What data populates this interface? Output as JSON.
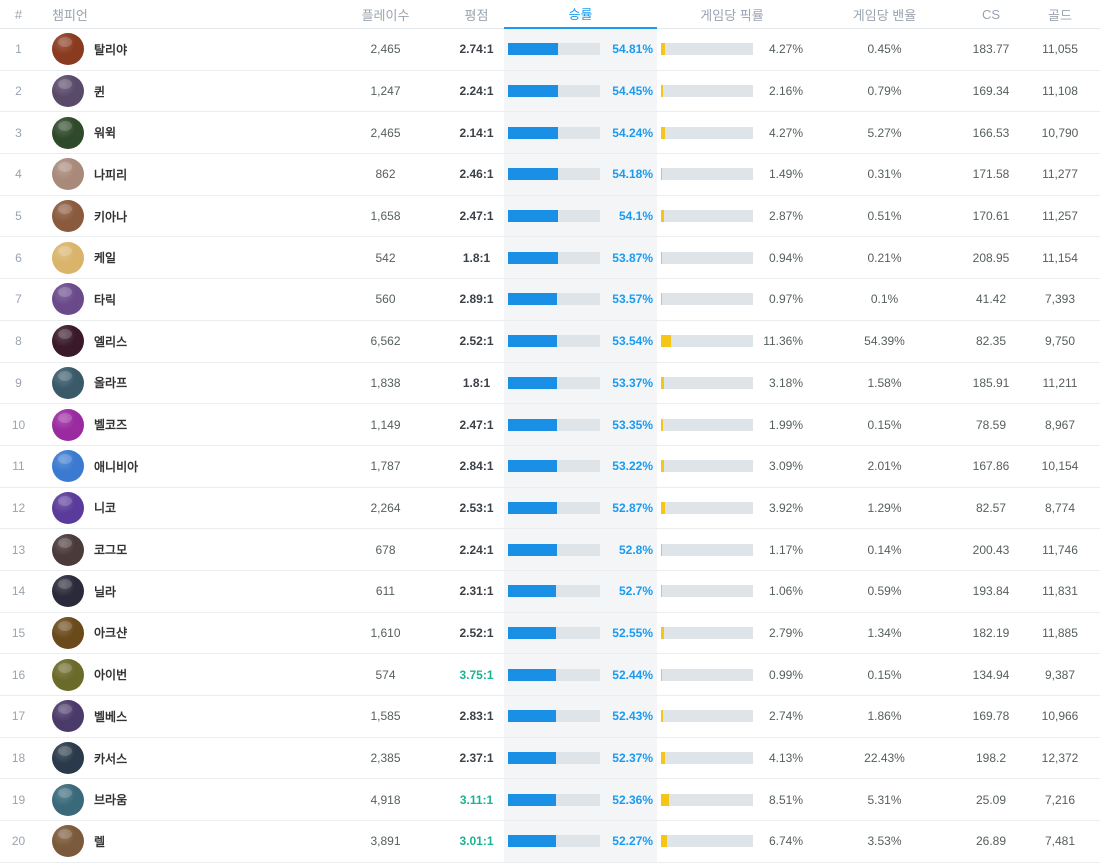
{
  "columns": {
    "rank": "#",
    "champion": "챔피언",
    "plays": "플레이수",
    "kda": "평점",
    "winrate": "승률",
    "pickrate": "게임당 픽률",
    "banrate": "게임당 밴율",
    "cs": "CS",
    "gold": "골드"
  },
  "colors": {
    "accent": "#1a9bf0",
    "win_bar": "#1a8fe6",
    "pick_bar": "#f5c518",
    "kda_highlight": "#1ab394"
  },
  "rows": [
    {
      "rank": "1",
      "name": "탈리야",
      "plays": "2,465",
      "kda": "2.74:1",
      "winrate": "54.81%",
      "win_fraction": 0.548,
      "pickrate": "4.27%",
      "pick_fraction": 0.043,
      "banrate": "0.45%",
      "cs": "183.77",
      "gold": "11,055",
      "avatar_color": "#8a3a1f"
    },
    {
      "rank": "2",
      "name": "퀸",
      "plays": "1,247",
      "kda": "2.24:1",
      "winrate": "54.45%",
      "win_fraction": 0.545,
      "pickrate": "2.16%",
      "pick_fraction": 0.022,
      "banrate": "0.79%",
      "cs": "169.34",
      "gold": "11,108",
      "avatar_color": "#5a4a6a"
    },
    {
      "rank": "3",
      "name": "워윅",
      "plays": "2,465",
      "kda": "2.14:1",
      "winrate": "54.24%",
      "win_fraction": 0.542,
      "pickrate": "4.27%",
      "pick_fraction": 0.043,
      "banrate": "5.27%",
      "cs": "166.53",
      "gold": "10,790",
      "avatar_color": "#2f4a2a"
    },
    {
      "rank": "4",
      "name": "나피리",
      "plays": "862",
      "kda": "2.46:1",
      "winrate": "54.18%",
      "win_fraction": 0.542,
      "pickrate": "1.49%",
      "pick_fraction": 0.015,
      "banrate": "0.31%",
      "cs": "171.58",
      "gold": "11,277",
      "avatar_color": "#a98a7a"
    },
    {
      "rank": "5",
      "name": "키아나",
      "plays": "1,658",
      "kda": "2.47:1",
      "winrate": "54.1%",
      "win_fraction": 0.541,
      "pickrate": "2.87%",
      "pick_fraction": 0.029,
      "banrate": "0.51%",
      "cs": "170.61",
      "gold": "11,257",
      "avatar_color": "#8a5a3e"
    },
    {
      "rank": "6",
      "name": "케일",
      "plays": "542",
      "kda": "1.8:1",
      "winrate": "53.87%",
      "win_fraction": 0.539,
      "pickrate": "0.94%",
      "pick_fraction": 0.009,
      "banrate": "0.21%",
      "cs": "208.95",
      "gold": "11,154",
      "avatar_color": "#d9b46a"
    },
    {
      "rank": "7",
      "name": "타릭",
      "plays": "560",
      "kda": "2.89:1",
      "winrate": "53.57%",
      "win_fraction": 0.536,
      "pickrate": "0.97%",
      "pick_fraction": 0.01,
      "banrate": "0.1%",
      "cs": "41.42",
      "gold": "7,393",
      "avatar_color": "#6a4a8a"
    },
    {
      "rank": "8",
      "name": "엘리스",
      "plays": "6,562",
      "kda": "2.52:1",
      "winrate": "53.54%",
      "win_fraction": 0.535,
      "pickrate": "11.36%",
      "pick_fraction": 0.114,
      "banrate": "54.39%",
      "cs": "82.35",
      "gold": "9,750",
      "avatar_color": "#3a1a2a"
    },
    {
      "rank": "9",
      "name": "올라프",
      "plays": "1,838",
      "kda": "1.8:1",
      "winrate": "53.37%",
      "win_fraction": 0.534,
      "pickrate": "3.18%",
      "pick_fraction": 0.032,
      "banrate": "1.58%",
      "cs": "185.91",
      "gold": "11,211",
      "avatar_color": "#3a5a6a"
    },
    {
      "rank": "10",
      "name": "벨코즈",
      "plays": "1,149",
      "kda": "2.47:1",
      "winrate": "53.35%",
      "win_fraction": 0.534,
      "pickrate": "1.99%",
      "pick_fraction": 0.02,
      "banrate": "0.15%",
      "cs": "78.59",
      "gold": "8,967",
      "avatar_color": "#9a2aa0"
    },
    {
      "rank": "11",
      "name": "애니비아",
      "plays": "1,787",
      "kda": "2.84:1",
      "winrate": "53.22%",
      "win_fraction": 0.532,
      "pickrate": "3.09%",
      "pick_fraction": 0.031,
      "banrate": "2.01%",
      "cs": "167.86",
      "gold": "10,154",
      "avatar_color": "#3a7ad0"
    },
    {
      "rank": "12",
      "name": "니코",
      "plays": "2,264",
      "kda": "2.53:1",
      "winrate": "52.87%",
      "win_fraction": 0.529,
      "pickrate": "3.92%",
      "pick_fraction": 0.039,
      "banrate": "1.29%",
      "cs": "82.57",
      "gold": "8,774",
      "avatar_color": "#5a3a9a"
    },
    {
      "rank": "13",
      "name": "코그모",
      "plays": "678",
      "kda": "2.24:1",
      "winrate": "52.8%",
      "win_fraction": 0.528,
      "pickrate": "1.17%",
      "pick_fraction": 0.012,
      "banrate": "0.14%",
      "cs": "200.43",
      "gold": "11,746",
      "avatar_color": "#4a3a3a"
    },
    {
      "rank": "14",
      "name": "닐라",
      "plays": "611",
      "kda": "2.31:1",
      "winrate": "52.7%",
      "win_fraction": 0.527,
      "pickrate": "1.06%",
      "pick_fraction": 0.011,
      "banrate": "0.59%",
      "cs": "193.84",
      "gold": "11,831",
      "avatar_color": "#2a2a3a"
    },
    {
      "rank": "15",
      "name": "아크샨",
      "plays": "1,610",
      "kda": "2.52:1",
      "winrate": "52.55%",
      "win_fraction": 0.526,
      "pickrate": "2.79%",
      "pick_fraction": 0.028,
      "banrate": "1.34%",
      "cs": "182.19",
      "gold": "11,885",
      "avatar_color": "#6a4a1a"
    },
    {
      "rank": "16",
      "name": "아이번",
      "plays": "574",
      "kda": "3.75:1",
      "winrate": "52.44%",
      "win_fraction": 0.524,
      "pickrate": "0.99%",
      "pick_fraction": 0.01,
      "banrate": "0.15%",
      "cs": "134.94",
      "gold": "9,387",
      "avatar_color": "#6a6a2a",
      "kda_high": true
    },
    {
      "rank": "17",
      "name": "벨베스",
      "plays": "1,585",
      "kda": "2.83:1",
      "winrate": "52.43%",
      "win_fraction": 0.524,
      "pickrate": "2.74%",
      "pick_fraction": 0.027,
      "banrate": "1.86%",
      "cs": "169.78",
      "gold": "10,966",
      "avatar_color": "#4a3a6a"
    },
    {
      "rank": "18",
      "name": "카서스",
      "plays": "2,385",
      "kda": "2.37:1",
      "winrate": "52.37%",
      "win_fraction": 0.524,
      "pickrate": "4.13%",
      "pick_fraction": 0.041,
      "banrate": "22.43%",
      "cs": "198.2",
      "gold": "12,372",
      "avatar_color": "#2a3a4a"
    },
    {
      "rank": "19",
      "name": "브라움",
      "plays": "4,918",
      "kda": "3.11:1",
      "winrate": "52.36%",
      "win_fraction": 0.524,
      "pickrate": "8.51%",
      "pick_fraction": 0.085,
      "banrate": "5.31%",
      "cs": "25.09",
      "gold": "7,216",
      "avatar_color": "#3a6a7a",
      "kda_high": true
    },
    {
      "rank": "20",
      "name": "렐",
      "plays": "3,891",
      "kda": "3.01:1",
      "winrate": "52.27%",
      "win_fraction": 0.523,
      "pickrate": "6.74%",
      "pick_fraction": 0.067,
      "banrate": "3.53%",
      "cs": "26.89",
      "gold": "7,481",
      "avatar_color": "#7a5a3a",
      "kda_high": true
    }
  ]
}
